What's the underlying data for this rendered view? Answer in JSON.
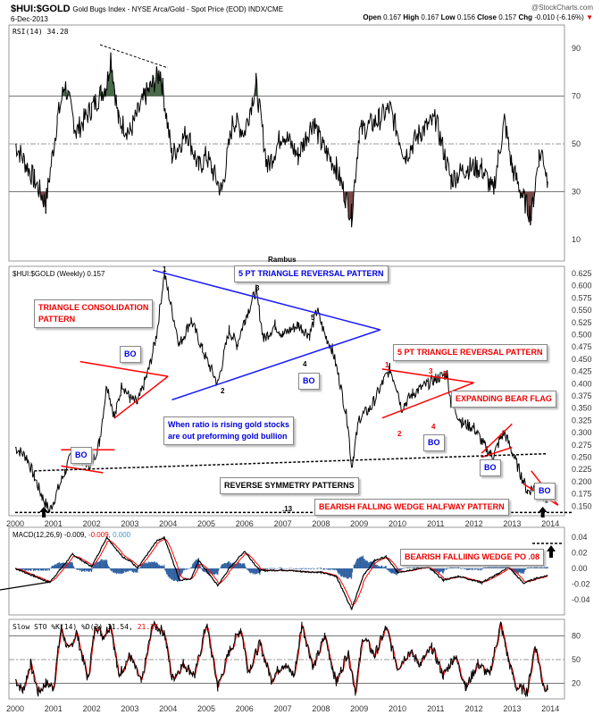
{
  "header": {
    "symbol": "$HUI:$GOLD",
    "description": "Gold Bugs Index - NYSE Arca/Gold - Spot Price (EOD) INDX/CME",
    "date": "6-Dec-2013",
    "watermark": "@StockCharts.com",
    "open_label": "Open",
    "open": "0.167",
    "high_label": "High",
    "high": "0.167",
    "low_label": "Low",
    "low": "0.156",
    "close_label": "Close",
    "close": "0.157",
    "chg_label": "Chg",
    "chg": "-0.010 (-6.16%)",
    "chg_arrow": "▼"
  },
  "author": "Rambus",
  "colors": {
    "price": "#000000",
    "blue_lines": "#1a1aff",
    "red_lines": "#ff0000",
    "macd": "#000000",
    "signal": "#ff0000",
    "histogram": "#2e5fa0",
    "rsi_fill": "#7a4a48",
    "rsi_fill_up": "#4a6b4a"
  },
  "chart_data": [
    {
      "type": "line",
      "panel": "rsi",
      "legend": "RSI(14) 34.28",
      "yticks": [
        10,
        30,
        50,
        70,
        90
      ],
      "ylim": [
        0,
        100
      ],
      "ref_lines": [
        30,
        50,
        70
      ],
      "x": [
        2000,
        2000.5,
        2000.8,
        2001.1,
        2001.3,
        2001.6,
        2002,
        2002.4,
        2002.5,
        2002.7,
        2003,
        2003.4,
        2003.8,
        2004.1,
        2004.5,
        2004.8,
        2005,
        2005.4,
        2005.7,
        2006,
        2006.3,
        2006.6,
        2007,
        2007.4,
        2007.8,
        2008,
        2008.4,
        2008.8,
        2009,
        2009.5,
        2009.8,
        2010.2,
        2010.6,
        2011,
        2011.4,
        2011.8,
        2012.2,
        2012.5,
        2012.8,
        2013,
        2013.3,
        2013.5,
        2013.7,
        2013.8,
        2013.93
      ],
      "values": [
        50,
        35,
        25,
        60,
        75,
        55,
        65,
        75,
        87,
        60,
        55,
        70,
        80,
        45,
        55,
        40,
        45,
        30,
        60,
        55,
        75,
        40,
        55,
        45,
        60,
        50,
        40,
        20,
        55,
        60,
        65,
        45,
        55,
        60,
        35,
        40,
        40,
        30,
        60,
        40,
        27,
        20,
        45,
        46,
        34.28
      ]
    },
    {
      "type": "line",
      "panel": "price",
      "legend": "$HUI:$GOLD (Weekly) 0.157",
      "yticks": [
        0.15,
        0.175,
        0.2,
        0.225,
        0.25,
        0.275,
        0.3,
        0.325,
        0.35,
        0.375,
        0.4,
        0.425,
        0.45,
        0.475,
        0.5,
        0.525,
        0.55,
        0.575,
        0.6,
        0.625
      ],
      "ylim": [
        0.13,
        0.64
      ],
      "xticks": [
        "2000",
        "2001",
        "2002",
        "2003",
        "2004",
        "2005",
        "2006",
        "2007",
        "2008",
        "2009",
        "2010",
        "2011",
        "2012",
        "2013",
        "2014"
      ],
      "x": [
        2000,
        2000.3,
        2000.5,
        2000.7,
        2000.9,
        2001.1,
        2001.3,
        2001.5,
        2001.8,
        2002,
        2002.2,
        2002.4,
        2002.6,
        2002.8,
        2003,
        2003.2,
        2003.5,
        2003.7,
        2003.9,
        2004.1,
        2004.3,
        2004.6,
        2004.9,
        2005,
        2005.3,
        2005.6,
        2005.8,
        2006,
        2006.3,
        2006.5,
        2006.8,
        2007,
        2007.4,
        2007.7,
        2007.9,
        2008.1,
        2008.3,
        2008.5,
        2008.7,
        2008.8,
        2008.9,
        2009,
        2009.3,
        2009.6,
        2009.8,
        2010,
        2010.1,
        2010.4,
        2010.8,
        2011,
        2011.3,
        2011.4,
        2011.7,
        2012,
        2012.3,
        2012.5,
        2012.7,
        2012.8,
        2013,
        2013.2,
        2013.4,
        2013.6,
        2013.8,
        2013.93
      ],
      "values": [
        0.27,
        0.25,
        0.21,
        0.17,
        0.14,
        0.18,
        0.22,
        0.26,
        0.24,
        0.235,
        0.28,
        0.4,
        0.33,
        0.4,
        0.37,
        0.36,
        0.43,
        0.5,
        0.625,
        0.55,
        0.48,
        0.53,
        0.47,
        0.45,
        0.4,
        0.51,
        0.48,
        0.53,
        0.59,
        0.49,
        0.52,
        0.5,
        0.52,
        0.5,
        0.55,
        0.5,
        0.47,
        0.4,
        0.32,
        0.23,
        0.28,
        0.33,
        0.35,
        0.4,
        0.43,
        0.39,
        0.35,
        0.38,
        0.4,
        0.41,
        0.42,
        0.36,
        0.32,
        0.31,
        0.27,
        0.25,
        0.29,
        0.3,
        0.26,
        0.22,
        0.18,
        0.19,
        0.17,
        0.157
      ],
      "trendlines": [
        {
          "color": "blue",
          "from": [
            2003.6,
            0.632
          ],
          "to": [
            2009.55,
            0.51
          ]
        },
        {
          "color": "blue",
          "from": [
            2004.1,
            0.367
          ],
          "to": [
            2009.55,
            0.51
          ]
        },
        {
          "color": "red",
          "from": [
            2001.7,
            0.445
          ],
          "to": [
            2004.0,
            0.415
          ]
        },
        {
          "color": "red",
          "from": [
            2002.6,
            0.33
          ],
          "to": [
            2004.0,
            0.415
          ]
        },
        {
          "color": "red",
          "from": [
            2001.2,
            0.265
          ],
          "to": [
            2002.6,
            0.265
          ]
        },
        {
          "color": "red",
          "from": [
            2001.2,
            0.232
          ],
          "to": [
            2002.3,
            0.218
          ]
        },
        {
          "color": "red",
          "from": [
            2009.6,
            0.43
          ],
          "to": [
            2012.0,
            0.402
          ]
        },
        {
          "color": "red",
          "from": [
            2009.6,
            0.33
          ],
          "to": [
            2012.0,
            0.402
          ]
        },
        {
          "color": "red",
          "from": [
            2012.2,
            0.258
          ],
          "to": [
            2013.0,
            0.318
          ]
        },
        {
          "color": "red",
          "from": [
            2012.2,
            0.25
          ],
          "to": [
            2013.0,
            0.27
          ]
        },
        {
          "color": "red",
          "from": [
            2013.5,
            0.222
          ],
          "to": [
            2014.2,
            0.152
          ]
        },
        {
          "color": "red",
          "from": [
            2013.3,
            0.195
          ],
          "to": [
            2014.2,
            0.152
          ]
        },
        {
          "color": "black-dotted",
          "from": [
            2000.5,
            0.222
          ],
          "to": [
            2013.9,
            0.257
          ]
        },
        {
          "color": "black-dotted",
          "from": [
            2000,
            0.137
          ],
          "to": [
            2014.6,
            0.137
          ]
        }
      ],
      "annotations": {
        "target_low": ".13",
        "triangle_consolidation": "TRIANGLE CONSOLIDATION\nPATTERN",
        "five_pt_blue": "5 PT TRIANGLE REVERSAL PATTERN",
        "five_pt_red": "5 PT TRIANGLE REVERSAL PATTERN",
        "ratio_note": "When ratio is rising gold stocks\nare out preforming gold bullion",
        "expanding_flag": "EXPANDING BEAR FLAG",
        "reverse_symmetry": "REVERSE SYMMETRY PATTERNS",
        "falling_wedge": "BEARISH FALLING WEDGE HALFWAY PATTERN",
        "bo": "BO",
        "points": [
          "1",
          "2",
          "3",
          "4",
          "5"
        ]
      }
    },
    {
      "type": "line",
      "panel": "macd",
      "legend": "MACD(12,26,9)",
      "macd_value": "-0.009",
      "signal_value": "-0.009",
      "hist_value": "0.000",
      "yticks": [
        0.04,
        0.02,
        0.0,
        -0.02,
        -0.04
      ],
      "ylim": [
        -0.06,
        0.05
      ],
      "x": [
        2000,
        2000.5,
        2000.9,
        2001.5,
        2002,
        2002.4,
        2002.8,
        2003,
        2003.2,
        2003.7,
        2003.9,
        2004.3,
        2004.6,
        2004.8,
        2005.3,
        2005.6,
        2006,
        2006.4,
        2007,
        2007.5,
        2008,
        2008.4,
        2008.8,
        2009.1,
        2009.4,
        2009.7,
        2010,
        2010.8,
        2011.2,
        2011.6,
        2012.2,
        2012.6,
        2012.9,
        2013.3,
        2013.6,
        2013.93
      ],
      "values": [
        0,
        -0.01,
        -0.018,
        0.018,
        0.002,
        0.04,
        0.015,
        0.01,
        0,
        0.035,
        0.04,
        -0.015,
        -0.013,
        0.01,
        -0.022,
        0,
        0.022,
        -0.003,
        -0.002,
        -0.004,
        -0.005,
        -0.01,
        -0.052,
        -0.01,
        0.01,
        0.015,
        -0.005,
        0.002,
        -0.015,
        -0.01,
        -0.018,
        -0.008,
        0.002,
        -0.019,
        -0.013,
        -0.009
      ],
      "annotation": "BEARISH FALLIING WEDGE PO .08"
    },
    {
      "type": "line",
      "panel": "sto",
      "legend": "Slow STO %K(14) %D(3)",
      "k_value": "11.54",
      "d_value": "21.75",
      "yticks": [
        80,
        50,
        20
      ],
      "ylim": [
        0,
        100
      ],
      "ref_lines": [
        20,
        50,
        80
      ],
      "xticks": [
        "2000",
        "2001",
        "2002",
        "2003",
        "2004",
        "2005",
        "2006",
        "2007",
        "2008",
        "2009",
        "2010",
        "2011",
        "2012",
        "2013",
        "2014"
      ],
      "x": [
        2000,
        2000.2,
        2000.4,
        2000.6,
        2000.8,
        2001,
        2001.2,
        2001.4,
        2001.6,
        2001.9,
        2002.1,
        2002.3,
        2002.5,
        2002.7,
        2003,
        2003.3,
        2003.6,
        2003.9,
        2004.1,
        2004.4,
        2004.7,
        2005,
        2005.3,
        2005.6,
        2005.9,
        2006.1,
        2006.4,
        2006.7,
        2007,
        2007.3,
        2007.5,
        2007.8,
        2008.1,
        2008.4,
        2008.7,
        2008.9,
        2009.1,
        2009.4,
        2009.7,
        2010,
        2010.3,
        2010.6,
        2010.9,
        2011.2,
        2011.5,
        2011.8,
        2012.1,
        2012.4,
        2012.7,
        2012.9,
        2013.1,
        2013.4,
        2013.6,
        2013.8,
        2013.93
      ],
      "values": [
        25,
        10,
        45,
        8,
        20,
        15,
        90,
        60,
        85,
        25,
        95,
        80,
        95,
        30,
        55,
        20,
        95,
        85,
        25,
        45,
        30,
        95,
        15,
        60,
        90,
        35,
        70,
        25,
        45,
        30,
        95,
        40,
        80,
        20,
        60,
        10,
        80,
        55,
        90,
        40,
        60,
        45,
        65,
        30,
        55,
        15,
        45,
        30,
        95,
        50,
        15,
        10,
        70,
        20,
        11.54
      ]
    }
  ],
  "xaxis": {
    "labels": [
      "2000",
      "2001",
      "2002",
      "2003",
      "2004",
      "2005",
      "2006",
      "2007",
      "2008",
      "2009",
      "2010",
      "2011",
      "2012",
      "2013",
      "2014"
    ]
  }
}
